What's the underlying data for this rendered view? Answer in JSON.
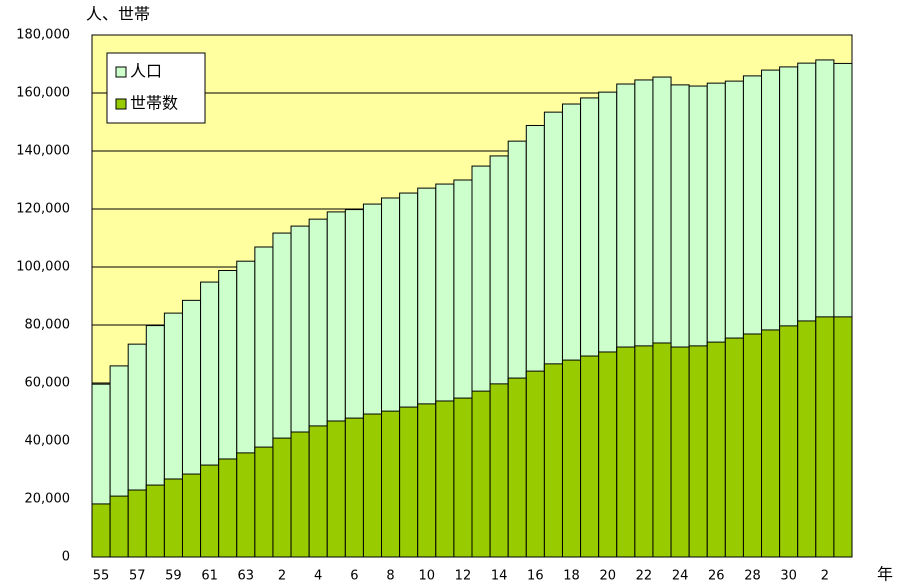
{
  "chart_data": {
    "type": "bar",
    "y_label": "人、世帯",
    "x_label": "年",
    "categories": [
      "55",
      null,
      "57",
      null,
      "59",
      null,
      "61",
      null,
      "63",
      null,
      "2",
      null,
      "4",
      null,
      "6",
      null,
      "8",
      null,
      "10",
      null,
      "12",
      null,
      "14",
      null,
      "16",
      null,
      "18",
      null,
      "20",
      null,
      "22",
      null,
      "24",
      null,
      "26",
      null,
      "28",
      null,
      "30",
      null,
      "2",
      null
    ],
    "series": [
      {
        "name": "人口",
        "color": "#ccffcc",
        "values": [
          59600,
          65900,
          73400,
          79800,
          84100,
          88500,
          94800,
          98800,
          102000,
          106900,
          111700,
          114100,
          116500,
          119000,
          119800,
          121700,
          123800,
          125500,
          127200,
          128600,
          130000,
          134800,
          138300,
          143400,
          148800,
          153400,
          156200,
          158300,
          160300,
          163100,
          164500,
          165500,
          162800,
          162400,
          163400,
          164100,
          165900,
          167900,
          169000,
          170300,
          171400,
          170200
        ]
      },
      {
        "name": "世帯数",
        "color": "#99cc00",
        "values": [
          18300,
          21000,
          23100,
          24800,
          26900,
          28600,
          31700,
          33800,
          35900,
          37900,
          41000,
          43100,
          45200,
          46900,
          47900,
          49300,
          50300,
          51700,
          52800,
          53800,
          54800,
          57200,
          59700,
          61700,
          64100,
          66600,
          67900,
          69300,
          70700,
          72400,
          72800,
          73800,
          72400,
          72800,
          74100,
          75500,
          76900,
          78300,
          79700,
          81400,
          82800,
          82800
        ]
      }
    ],
    "overlap": true,
    "ylim": [
      0,
      180000
    ],
    "yticks": [
      0,
      {
        "value": 20000,
        "label": "20,000"
      },
      {
        "value": 40000,
        "label": "40,000"
      },
      {
        "value": 60000,
        "label": "60,000"
      },
      {
        "value": 80000,
        "label": "80,000"
      },
      {
        "value": 100000,
        "label": "100,000"
      },
      {
        "value": 120000,
        "label": "120,000"
      },
      {
        "value": 140000,
        "label": "140,000"
      },
      {
        "value": 160000,
        "label": "160,000"
      },
      {
        "value": 180000,
        "label": "180,000"
      }
    ],
    "grid": true,
    "legend": "upper left",
    "plot_background": "#ffffa0"
  }
}
